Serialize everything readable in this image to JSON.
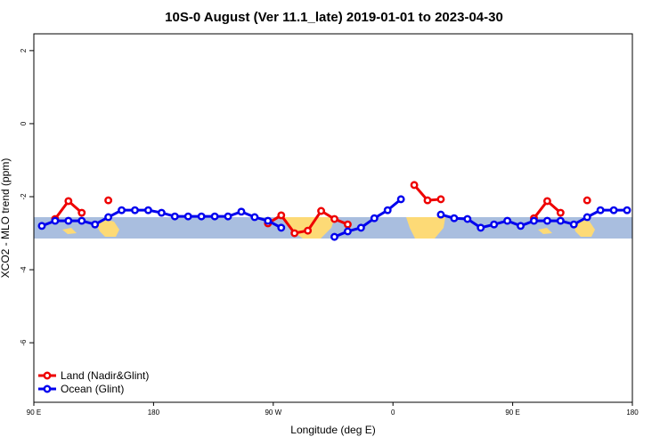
{
  "chart_data": {
    "type": "line",
    "title": "10S-0 August (Ver 11.1_late)   2019-01-01 to 2023-04-30",
    "x_label": "Longitude (deg E)",
    "y_label": "XCO2 - MLO trend (ppm)",
    "x": [
      96,
      106,
      116,
      126,
      136,
      146,
      156,
      166,
      176,
      186,
      196,
      206,
      216,
      226,
      236,
      246,
      256,
      266,
      276,
      286,
      296,
      306,
      316,
      326,
      336,
      346,
      356,
      366,
      376,
      386,
      396,
      406,
      416,
      426,
      436,
      446,
      456,
      466,
      476,
      486,
      496,
      506,
      516,
      526,
      536
    ],
    "series": [
      {
        "name": "Land (Nadir&Glint)",
        "color": "#ee0000",
        "values": [
          null,
          -2.61,
          -2.12,
          -2.44,
          null,
          -2.1,
          null,
          null,
          null,
          null,
          null,
          null,
          null,
          null,
          null,
          null,
          null,
          -2.73,
          -2.51,
          -3.0,
          -2.93,
          -2.39,
          -2.61,
          -2.76,
          null,
          null,
          null,
          null,
          -1.68,
          -2.1,
          -2.07,
          null,
          null,
          null,
          null,
          null,
          null,
          -2.59,
          -2.12,
          -2.44,
          null,
          -2.1,
          null,
          null,
          null
        ]
      },
      {
        "name": "Ocean (Glint)",
        "color": "#0000ee",
        "values": [
          -2.8,
          -2.66,
          -2.66,
          -2.66,
          -2.76,
          -2.56,
          -2.37,
          -2.37,
          -2.37,
          -2.44,
          -2.54,
          -2.54,
          -2.54,
          -2.54,
          -2.54,
          -2.41,
          -2.56,
          -2.66,
          -2.85,
          null,
          null,
          null,
          -3.1,
          -2.95,
          -2.85,
          -2.59,
          -2.37,
          -2.07,
          null,
          null,
          -2.49,
          -2.59,
          -2.61,
          -2.85,
          -2.76,
          -2.66,
          -2.8,
          -2.66,
          -2.66,
          -2.66,
          -2.76,
          -2.56,
          -2.37,
          -2.37,
          -2.37
        ]
      }
    ],
    "xlim": [
      90,
      540
    ],
    "xticks": [
      {
        "value": 90,
        "label": "90 E"
      },
      180,
      {
        "value": 270,
        "label": "90 W"
      },
      {
        "value": 360,
        "label": "0"
      },
      {
        "value": 450,
        "label": "90 E"
      },
      {
        "value": 540,
        "label": "180"
      }
    ],
    "ylim": [
      -7.63,
      2.46
    ],
    "yticks": [
      2,
      0,
      -2,
      -4,
      -6
    ],
    "legend": "bottom-left"
  }
}
